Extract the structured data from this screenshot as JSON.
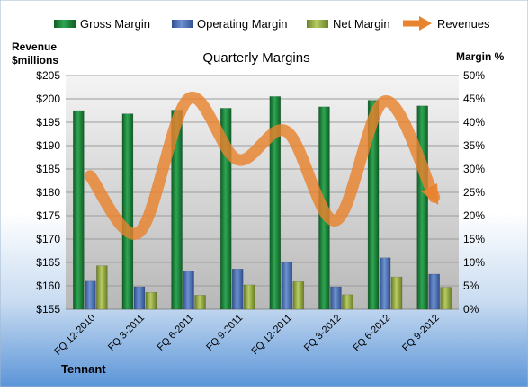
{
  "chart_data": {
    "type": "bar",
    "title": "Quarterly Margins",
    "left_axis_label_line1": "Revenue",
    "left_axis_label_line2": "$millions",
    "right_axis_label": "Margin %",
    "company": "Tennant",
    "categories": [
      "FQ 12-2010",
      "FQ 3-2011",
      "FQ 6-2011",
      "FQ 9-2011",
      "FQ 12-2011",
      "FQ 3-2012",
      "FQ 6-2012",
      "FQ 9-2012"
    ],
    "left_axis": {
      "min": 155,
      "max": 205,
      "step": 5,
      "tick_labels": [
        "$155",
        "$160",
        "$165",
        "$170",
        "$175",
        "$180",
        "$185",
        "$190",
        "$195",
        "$200",
        "$205"
      ]
    },
    "right_axis": {
      "min": 0,
      "max": 50,
      "step": 5,
      "tick_labels": [
        "0%",
        "5%",
        "10%",
        "15%",
        "20%",
        "25%",
        "30%",
        "35%",
        "40%",
        "45%",
        "50%"
      ]
    },
    "series": [
      {
        "name": "Gross Margin",
        "axis": "right",
        "color": "#1E8A3C",
        "values": [
          42.5,
          41.8,
          42.6,
          43.0,
          45.5,
          43.3,
          44.7,
          43.5
        ]
      },
      {
        "name": "Operating Margin",
        "axis": "right",
        "color": "#4F74B8",
        "values": [
          6.0,
          4.8,
          8.2,
          8.6,
          10.0,
          4.8,
          11.0,
          7.5
        ]
      },
      {
        "name": "Net Margin",
        "axis": "right",
        "color": "#9BB14C",
        "values": [
          9.3,
          3.6,
          3.0,
          5.2,
          5.9,
          3.1,
          6.9,
          4.7
        ]
      },
      {
        "name": "Revenues",
        "axis": "left",
        "color": "#E8832E",
        "type": "line",
        "values": [
          183.5,
          171.5,
          200.0,
          187.0,
          193.0,
          174.0,
          199.5,
          179.0
        ]
      }
    ],
    "grid": true,
    "legend": "top"
  }
}
